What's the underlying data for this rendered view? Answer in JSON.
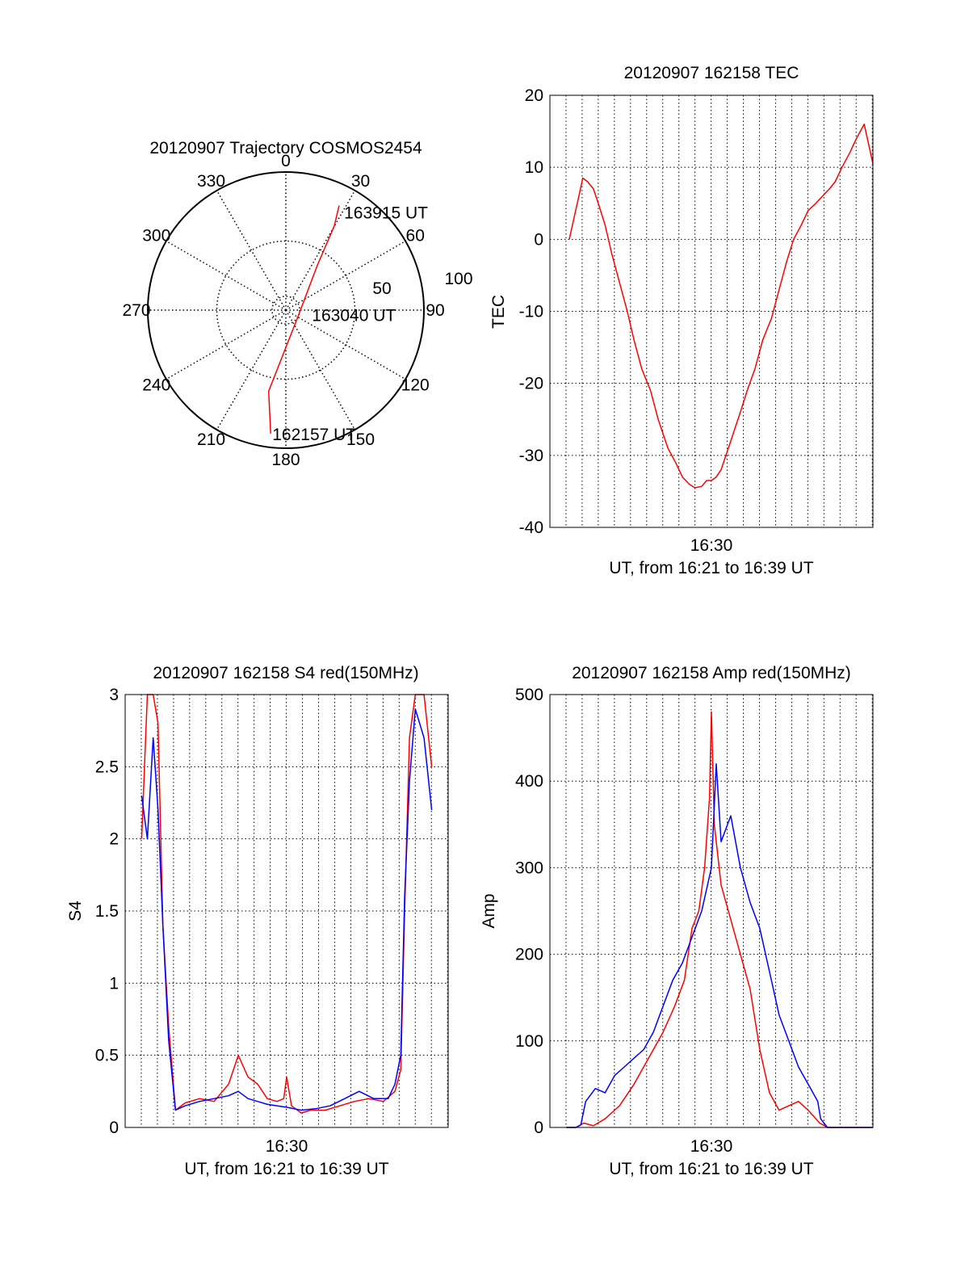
{
  "chart_data": [
    {
      "type": "polar",
      "title": "20120907 Trajectory COSMOS2454",
      "angle_labels": [
        "0",
        "30",
        "60",
        "90",
        "120",
        "150",
        "180",
        "210",
        "240",
        "270",
        "300",
        "330"
      ],
      "radial_labels": [
        "50",
        "100"
      ],
      "rlim": [
        0,
        100
      ],
      "grid": true,
      "series": [
        {
          "color": "#ff0000",
          "points": [
            {
              "az": 187,
              "r": 90
            },
            {
              "az": 192,
              "r": 60
            },
            {
              "az": 120,
              "r": 10
            },
            {
              "az": 35,
              "r": 40
            },
            {
              "az": 30,
              "r": 70
            },
            {
              "az": 27,
              "r": 85
            }
          ]
        }
      ],
      "annotations": [
        {
          "text": "163915 UT",
          "az": 30,
          "r": 82
        },
        {
          "text": "163040 UT",
          "az": 100,
          "r": 18
        },
        {
          "text": "162157 UT",
          "az": 187,
          "r": 90
        }
      ]
    },
    {
      "type": "line",
      "title": "20120907 162158 TEC",
      "xlabel": "UT, from 16:21 to 16:39 UT",
      "ylabel": "TEC",
      "xlim": [
        16.333,
        16.667
      ],
      "ylim": [
        -40,
        20
      ],
      "yticks": [
        20,
        10,
        0,
        -10,
        -20,
        -30,
        -40
      ],
      "xtick_label": "16:30",
      "grid": true,
      "series": [
        {
          "color": "#ff0000",
          "x": [
            16.353,
            16.358,
            16.363,
            16.367,
            16.372,
            16.378,
            16.383,
            16.39,
            16.397,
            16.405,
            16.413,
            16.42,
            16.428,
            16.437,
            16.445,
            16.455,
            16.463,
            16.47,
            16.477,
            16.483,
            16.49,
            16.495,
            16.5,
            16.505,
            16.51,
            16.515,
            16.52,
            16.525,
            16.53,
            16.537,
            16.545,
            16.553,
            16.562,
            16.57,
            16.578,
            16.585,
            16.593,
            16.6,
            16.608,
            16.615,
            16.622,
            16.628,
            16.635,
            16.643,
            16.65,
            16.658,
            16.667
          ],
          "y": [
            0,
            3,
            6,
            8.5,
            8,
            7,
            5,
            2,
            -2,
            -6,
            -10,
            -14,
            -18,
            -21,
            -25,
            -29,
            -31,
            -33,
            -34,
            -34.5,
            -34.3,
            -33.5,
            -33.5,
            -33,
            -32,
            -30,
            -28,
            -26,
            -24,
            -21,
            -18,
            -14,
            -11,
            -7,
            -3,
            0,
            2,
            4,
            5,
            6,
            7,
            8,
            10,
            12,
            14,
            16,
            10.5
          ]
        }
      ]
    },
    {
      "type": "line",
      "title": "20120907 162158 S4 red(150MHz)",
      "xlabel": "UT, from 16:21 to 16:39 UT",
      "ylabel": "S4",
      "xlim": [
        16.333,
        16.667
      ],
      "ylim": [
        0,
        3
      ],
      "yticks": [
        3,
        2.5,
        2,
        1.5,
        1,
        0.5,
        0
      ],
      "ytick_labels": [
        "3",
        "2.5",
        "2",
        "1.5",
        "1",
        "0.5",
        "0"
      ],
      "xtick_label": "16:30",
      "grid": true,
      "series": [
        {
          "color": "#ff0000",
          "x": [
            16.35,
            16.356,
            16.362,
            16.367,
            16.372,
            16.378,
            16.385,
            16.395,
            16.41,
            16.425,
            16.44,
            16.45,
            16.46,
            16.47,
            16.48,
            16.49,
            16.497,
            16.5,
            16.505,
            16.515,
            16.525,
            16.54,
            16.555,
            16.57,
            16.585,
            16.6,
            16.612,
            16.618,
            16.622,
            16.627,
            16.633,
            16.642,
            16.65
          ],
          "y": [
            2.0,
            3.0,
            3.0,
            2.8,
            1.4,
            0.7,
            0.12,
            0.17,
            0.2,
            0.18,
            0.3,
            0.5,
            0.35,
            0.3,
            0.2,
            0.18,
            0.2,
            0.35,
            0.15,
            0.1,
            0.12,
            0.12,
            0.15,
            0.18,
            0.2,
            0.18,
            0.25,
            0.4,
            1.5,
            2.7,
            3.0,
            3.0,
            2.5
          ]
        },
        {
          "color": "#0000ff",
          "x": [
            16.35,
            16.356,
            16.362,
            16.367,
            16.372,
            16.378,
            16.385,
            16.395,
            16.41,
            16.425,
            16.44,
            16.45,
            16.46,
            16.47,
            16.48,
            16.49,
            16.5,
            16.515,
            16.53,
            16.545,
            16.56,
            16.575,
            16.59,
            16.605,
            16.612,
            16.618,
            16.622,
            16.627,
            16.633,
            16.642,
            16.65
          ],
          "y": [
            2.3,
            2.0,
            2.7,
            2.2,
            1.4,
            0.6,
            0.12,
            0.15,
            0.18,
            0.2,
            0.22,
            0.25,
            0.2,
            0.18,
            0.16,
            0.15,
            0.14,
            0.12,
            0.13,
            0.15,
            0.2,
            0.25,
            0.2,
            0.2,
            0.3,
            0.5,
            1.6,
            2.4,
            2.9,
            2.7,
            2.2
          ]
        }
      ]
    },
    {
      "type": "line",
      "title": "20120907 162158 Amp red(150MHz)",
      "xlabel": "UT, from 16:21 to 16:39 UT",
      "ylabel": "Amp",
      "xlim": [
        16.333,
        16.667
      ],
      "ylim": [
        0,
        500
      ],
      "yticks": [
        500,
        400,
        300,
        200,
        100,
        0
      ],
      "xtick_label": "16:30",
      "grid": true,
      "series": [
        {
          "color": "#ff0000",
          "x": [
            16.35,
            16.36,
            16.368,
            16.378,
            16.39,
            16.405,
            16.42,
            16.435,
            16.45,
            16.462,
            16.472,
            16.48,
            16.487,
            16.493,
            16.498,
            16.5,
            16.503,
            16.51,
            16.52,
            16.53,
            16.54,
            16.55,
            16.56,
            16.57,
            16.58,
            16.59,
            16.6,
            16.612,
            16.62,
            16.667
          ],
          "y": [
            0,
            0,
            5,
            2,
            10,
            25,
            50,
            80,
            110,
            140,
            170,
            230,
            250,
            300,
            380,
            480,
            350,
            280,
            240,
            200,
            160,
            90,
            40,
            20,
            25,
            30,
            20,
            5,
            0,
            0
          ]
        },
        {
          "color": "#0000ff",
          "x": [
            16.35,
            16.36,
            16.365,
            16.37,
            16.38,
            16.39,
            16.4,
            16.41,
            16.42,
            16.43,
            16.44,
            16.45,
            16.46,
            16.47,
            16.48,
            16.49,
            16.5,
            16.505,
            16.51,
            16.52,
            16.53,
            16.54,
            16.55,
            16.56,
            16.57,
            16.58,
            16.59,
            16.6,
            16.61,
            16.613,
            16.62,
            16.667
          ],
          "y": [
            0,
            0,
            3,
            30,
            45,
            40,
            60,
            70,
            80,
            90,
            110,
            140,
            170,
            190,
            220,
            250,
            300,
            420,
            330,
            360,
            300,
            260,
            230,
            180,
            130,
            100,
            70,
            50,
            30,
            10,
            0,
            0
          ]
        }
      ]
    }
  ]
}
